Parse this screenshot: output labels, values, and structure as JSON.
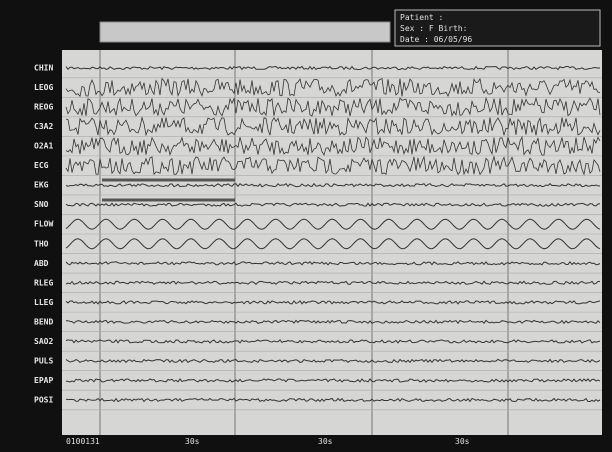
{
  "header": {
    "title": "Patient :",
    "lines": [
      "Sex : F Birth:",
      "Date : 06/05/96"
    ]
  },
  "channels": [
    "CHIN",
    "LEOG",
    "REOG",
    "C3A2",
    "O2A1",
    "ECG",
    "EKG",
    "SNO",
    "FLOW",
    "THO",
    "ABD",
    "RLEG",
    "LLEG",
    "BEND",
    "SAO2",
    "PULS",
    "EPAP",
    "POSI"
  ],
  "footer": {
    "time": "0100131",
    "marks": [
      "30s",
      "30s",
      "30s"
    ]
  }
}
